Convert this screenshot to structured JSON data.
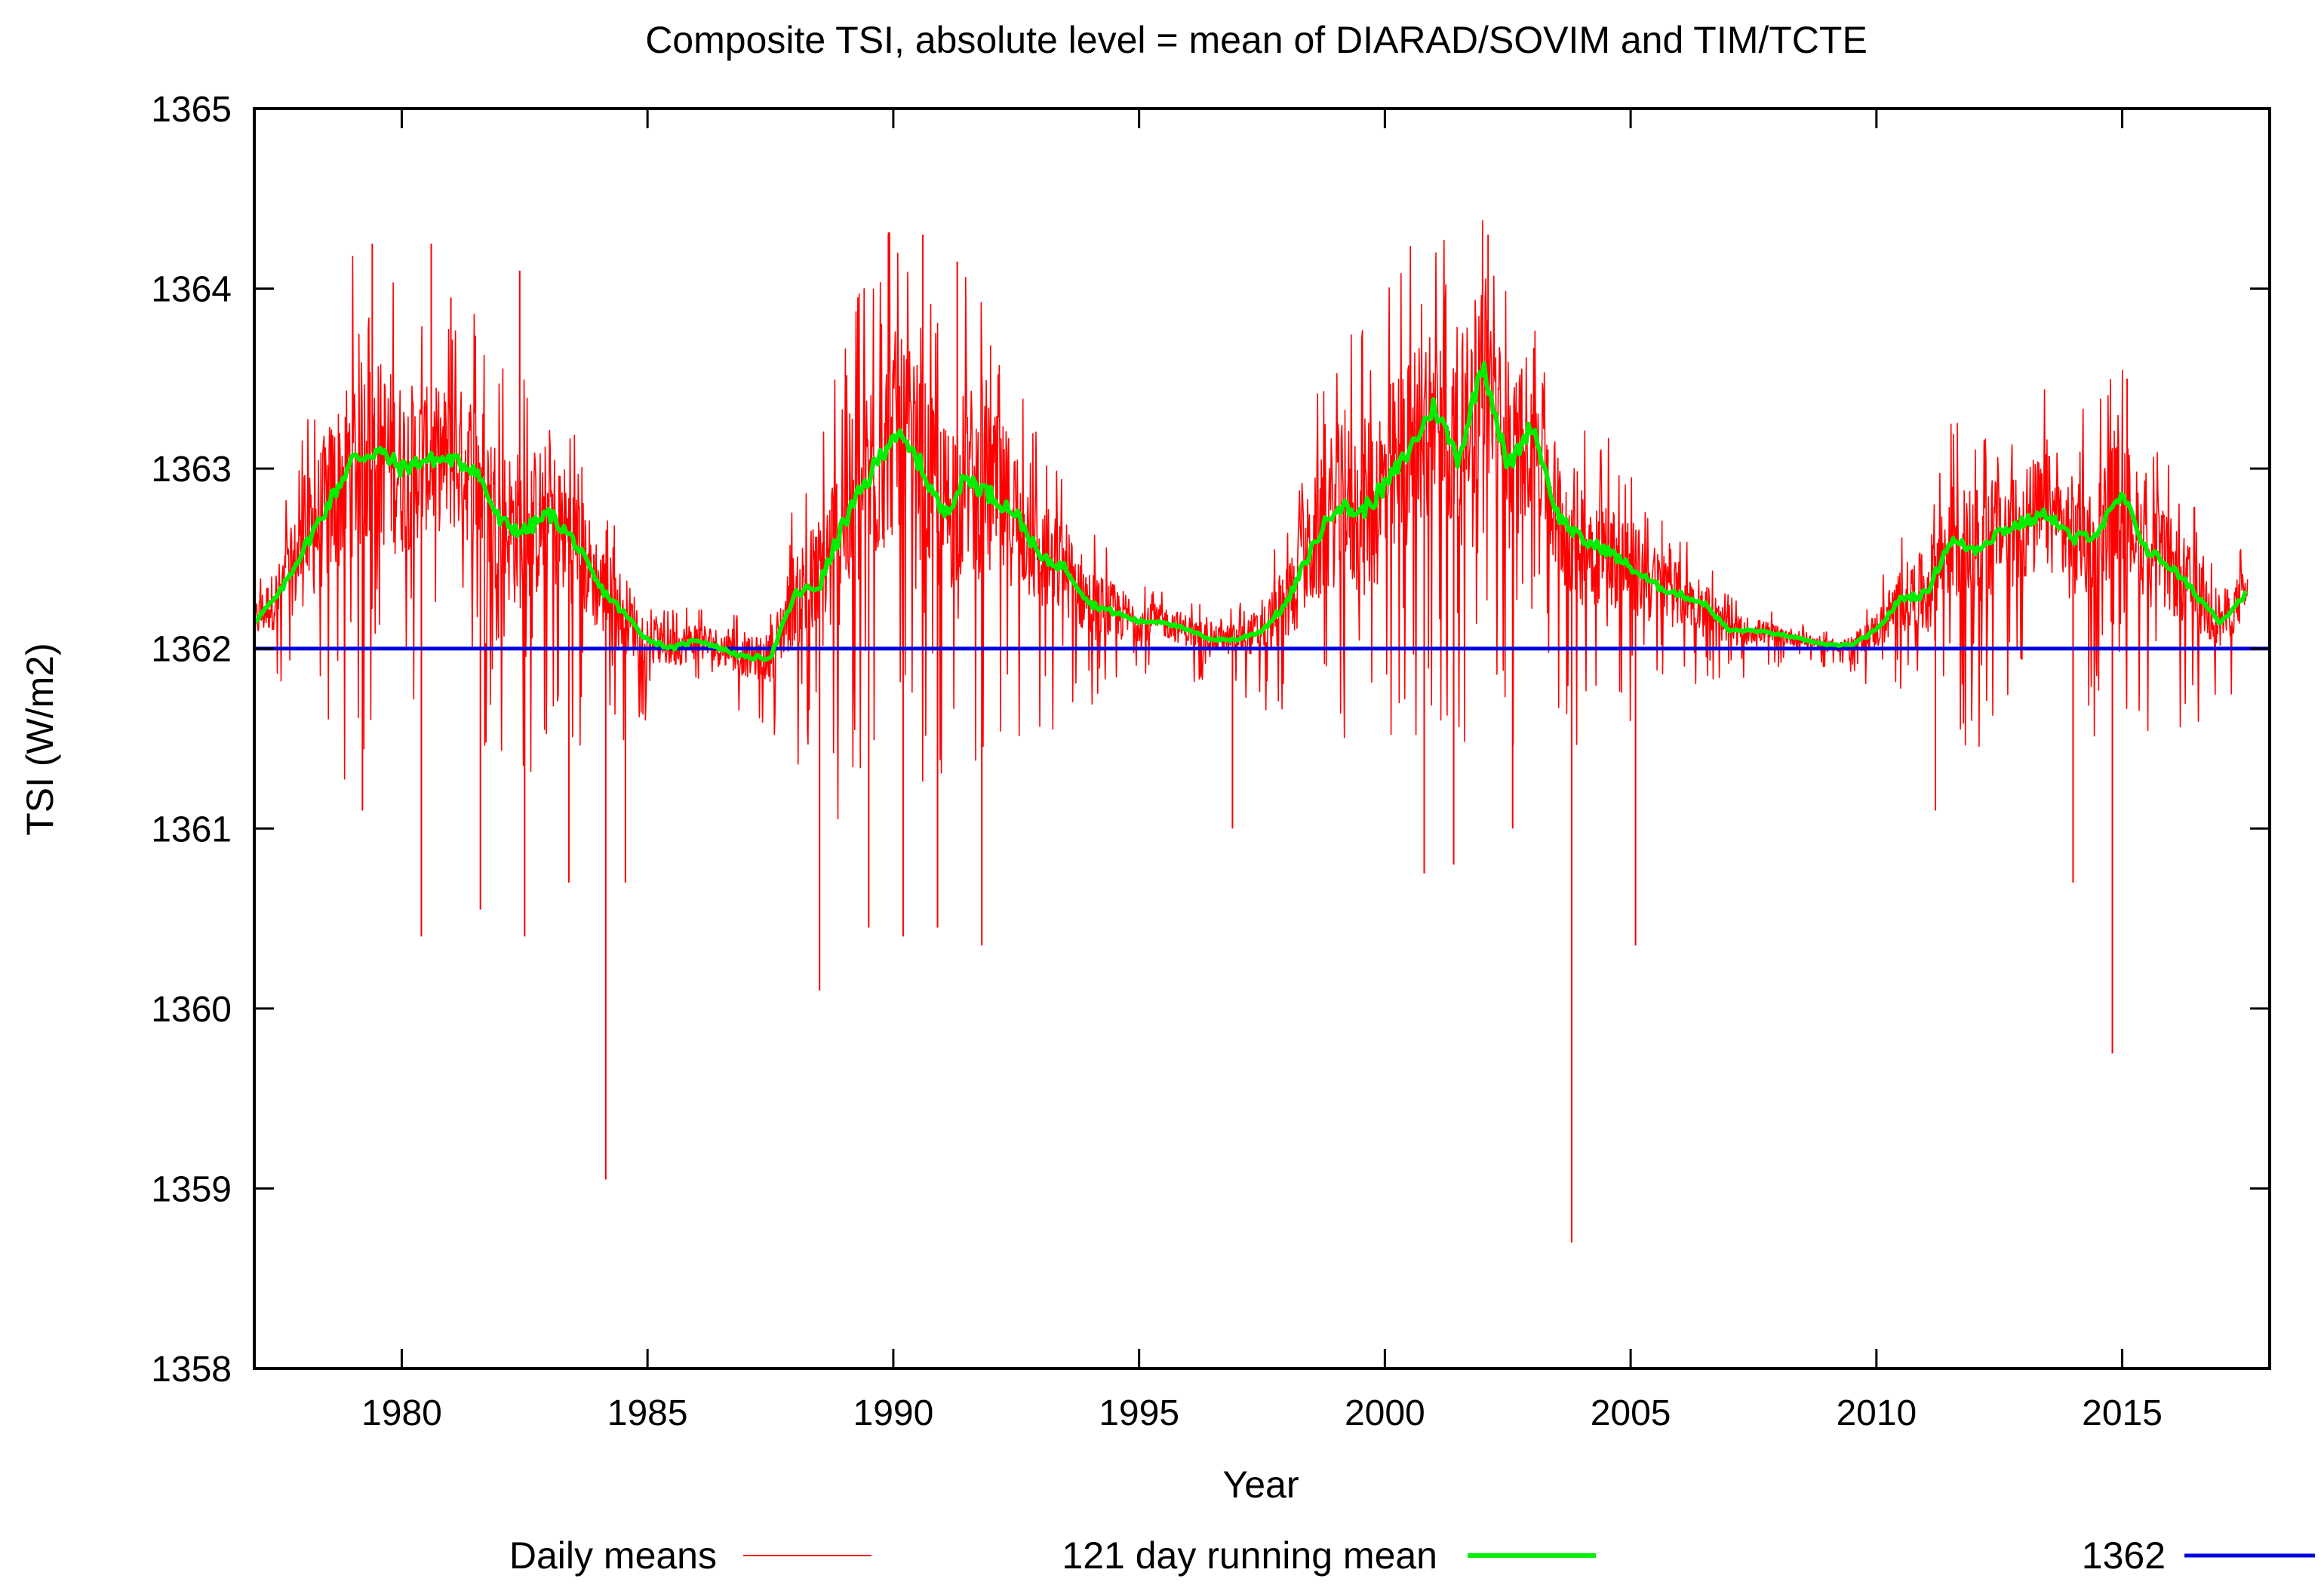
{
  "chart_data": {
    "type": "line",
    "title": "Composite TSI, absolute level = mean of DIARAD/SOVIM and TIM/TCTE",
    "xlabel": "Year",
    "ylabel": "TSI (W/m2)",
    "xlim": [
      1977.0,
      2018.0
    ],
    "ylim": [
      1358,
      1365
    ],
    "x_ticks": [
      1980,
      1985,
      1990,
      1995,
      2000,
      2005,
      2010,
      2015
    ],
    "y_ticks": [
      1358,
      1359,
      1360,
      1361,
      1362,
      1363,
      1364,
      1365
    ],
    "grid": false,
    "legend_position": "bottom",
    "series": [
      {
        "name": "Daily means",
        "color": "#ff0000",
        "style": "thin",
        "baseline": {
          "x": [
            1977.0,
            1977.5,
            1978.0,
            1978.5,
            1979.0,
            1979.5,
            1980.0,
            1980.5,
            1981.0,
            1981.5,
            1982.0,
            1982.5,
            1983.0,
            1983.5,
            1984.0,
            1984.5,
            1985.0,
            1985.5,
            1986.0,
            1986.5,
            1987.0,
            1987.5,
            1988.0,
            1988.5,
            1989.0,
            1989.5,
            1990.0,
            1990.5,
            1991.0,
            1991.5,
            1992.0,
            1992.5,
            1993.0,
            1993.5,
            1994.0,
            1994.5,
            1995.0,
            1995.5,
            1996.0,
            1996.5,
            1997.0,
            1997.5,
            1998.0,
            1998.5,
            1999.0,
            1999.5,
            2000.0,
            2000.5,
            2001.0,
            2001.5,
            2002.0,
            2002.5,
            2003.0,
            2003.5,
            2004.0,
            2004.5,
            2005.0,
            2005.5,
            2006.0,
            2006.5,
            2007.0,
            2007.5,
            2008.0,
            2008.5,
            2009.0,
            2009.5,
            2010.0,
            2010.5,
            2011.0,
            2011.5,
            2012.0,
            2012.5,
            2013.0,
            2013.5,
            2014.0,
            2014.5,
            2015.0,
            2015.5,
            2016.0,
            2016.5,
            2017.0,
            2017.5
          ],
          "y": [
            1362.15,
            1362.3,
            1362.55,
            1362.8,
            1363.05,
            1363.1,
            1363.0,
            1363.05,
            1363.05,
            1363.0,
            1362.7,
            1362.65,
            1362.75,
            1362.6,
            1362.35,
            1362.2,
            1362.05,
            1362.0,
            1362.05,
            1362.0,
            1361.95,
            1361.95,
            1362.3,
            1362.35,
            1362.7,
            1362.95,
            1363.2,
            1363.05,
            1362.75,
            1362.95,
            1362.85,
            1362.75,
            1362.5,
            1362.45,
            1362.25,
            1362.2,
            1362.15,
            1362.15,
            1362.1,
            1362.05,
            1362.05,
            1362.1,
            1362.25,
            1362.55,
            1362.8,
            1362.75,
            1362.9,
            1363.1,
            1363.35,
            1363.05,
            1363.6,
            1363.0,
            1363.25,
            1362.75,
            1362.6,
            1362.55,
            1362.45,
            1362.35,
            1362.3,
            1362.25,
            1362.1,
            1362.1,
            1362.08,
            1362.05,
            1362.02,
            1362.02,
            1362.1,
            1362.28,
            1362.3,
            1362.6,
            1362.55,
            1362.65,
            1362.7,
            1362.75,
            1362.6,
            1362.65,
            1362.85,
            1362.55,
            1362.45,
            1362.3,
            1362.15,
            1362.3
          ],
          "spread": [
            0.12,
            0.2,
            0.35,
            0.5,
            0.6,
            0.6,
            0.55,
            0.45,
            0.45,
            0.5,
            0.5,
            0.5,
            0.45,
            0.4,
            0.3,
            0.25,
            0.15,
            0.12,
            0.12,
            0.12,
            0.12,
            0.15,
            0.3,
            0.45,
            0.6,
            0.65,
            0.65,
            0.6,
            0.55,
            0.6,
            0.55,
            0.45,
            0.35,
            0.3,
            0.22,
            0.18,
            0.12,
            0.1,
            0.1,
            0.08,
            0.1,
            0.15,
            0.25,
            0.4,
            0.5,
            0.55,
            0.6,
            0.6,
            0.6,
            0.6,
            0.65,
            0.55,
            0.5,
            0.45,
            0.4,
            0.35,
            0.3,
            0.25,
            0.2,
            0.15,
            0.1,
            0.08,
            0.06,
            0.05,
            0.04,
            0.05,
            0.12,
            0.2,
            0.28,
            0.35,
            0.38,
            0.38,
            0.38,
            0.38,
            0.4,
            0.4,
            0.4,
            0.35,
            0.3,
            0.25,
            0.18,
            0.15
          ]
        },
        "notable_dips": [
          {
            "x": 1979.2,
            "y": 1361.1
          },
          {
            "x": 1980.4,
            "y": 1360.4
          },
          {
            "x": 1981.6,
            "y": 1360.55
          },
          {
            "x": 1982.5,
            "y": 1360.4
          },
          {
            "x": 1983.4,
            "y": 1360.7
          },
          {
            "x": 1984.15,
            "y": 1359.05
          },
          {
            "x": 1984.55,
            "y": 1360.7
          },
          {
            "x": 1988.5,
            "y": 1360.1
          },
          {
            "x": 1989.5,
            "y": 1360.45
          },
          {
            "x": 1990.2,
            "y": 1360.4
          },
          {
            "x": 1990.9,
            "y": 1360.45
          },
          {
            "x": 1991.8,
            "y": 1360.35
          },
          {
            "x": 1996.9,
            "y": 1361.0
          },
          {
            "x": 2000.8,
            "y": 1360.75
          },
          {
            "x": 2001.4,
            "y": 1360.8
          },
          {
            "x": 2002.6,
            "y": 1361.0
          },
          {
            "x": 2003.8,
            "y": 1358.7
          },
          {
            "x": 2005.1,
            "y": 1360.35
          },
          {
            "x": 2011.2,
            "y": 1361.1
          },
          {
            "x": 2014.0,
            "y": 1360.7
          },
          {
            "x": 2014.8,
            "y": 1359.75
          }
        ],
        "notable_peaks": [
          {
            "x": 1979.4,
            "y": 1364.25
          },
          {
            "x": 1980.6,
            "y": 1364.25
          },
          {
            "x": 1981.0,
            "y": 1363.95
          },
          {
            "x": 1982.4,
            "y": 1364.1
          },
          {
            "x": 1989.9,
            "y": 1364.3
          },
          {
            "x": 1990.6,
            "y": 1364.3
          },
          {
            "x": 1991.3,
            "y": 1364.15
          },
          {
            "x": 2002.1,
            "y": 1364.3
          },
          {
            "x": 2015.1,
            "y": 1363.5
          }
        ]
      },
      {
        "name": "121 day running mean",
        "color": "#00ee00",
        "style": "thick",
        "x": [
          1977.0,
          1977.5,
          1978.0,
          1978.5,
          1979.0,
          1979.5,
          1980.0,
          1980.5,
          1981.0,
          1981.5,
          1982.0,
          1982.5,
          1983.0,
          1983.5,
          1984.0,
          1984.5,
          1985.0,
          1985.5,
          1986.0,
          1986.5,
          1987.0,
          1987.5,
          1988.0,
          1988.5,
          1989.0,
          1989.5,
          1990.0,
          1990.5,
          1991.0,
          1991.5,
          1992.0,
          1992.5,
          1993.0,
          1993.5,
          1994.0,
          1994.5,
          1995.0,
          1995.5,
          1996.0,
          1996.5,
          1997.0,
          1997.5,
          1998.0,
          1998.5,
          1999.0,
          1999.5,
          2000.0,
          2000.5,
          2001.0,
          2001.5,
          2002.0,
          2002.5,
          2003.0,
          2003.5,
          2004.0,
          2004.5,
          2005.0,
          2005.5,
          2006.0,
          2006.5,
          2007.0,
          2007.5,
          2008.0,
          2008.5,
          2009.0,
          2009.5,
          2010.0,
          2010.5,
          2011.0,
          2011.5,
          2012.0,
          2012.5,
          2013.0,
          2013.5,
          2014.0,
          2014.5,
          2015.0,
          2015.5,
          2016.0,
          2016.5,
          2017.0,
          2017.5
        ],
        "y": [
          1362.15,
          1362.3,
          1362.55,
          1362.8,
          1363.05,
          1363.1,
          1363.0,
          1363.05,
          1363.05,
          1363.0,
          1362.7,
          1362.65,
          1362.75,
          1362.6,
          1362.35,
          1362.2,
          1362.05,
          1362.0,
          1362.05,
          1362.0,
          1361.95,
          1361.95,
          1362.3,
          1362.35,
          1362.7,
          1362.95,
          1363.2,
          1363.05,
          1362.75,
          1362.95,
          1362.85,
          1362.75,
          1362.5,
          1362.45,
          1362.25,
          1362.2,
          1362.15,
          1362.15,
          1362.1,
          1362.05,
          1362.05,
          1362.1,
          1362.25,
          1362.55,
          1362.8,
          1362.75,
          1362.9,
          1363.1,
          1363.35,
          1363.05,
          1363.6,
          1363.0,
          1363.25,
          1362.75,
          1362.6,
          1362.55,
          1362.45,
          1362.35,
          1362.3,
          1362.25,
          1362.1,
          1362.1,
          1362.08,
          1362.05,
          1362.02,
          1362.02,
          1362.1,
          1362.28,
          1362.3,
          1362.6,
          1362.55,
          1362.65,
          1362.7,
          1362.75,
          1362.6,
          1362.65,
          1362.85,
          1362.55,
          1362.45,
          1362.3,
          1362.15,
          1362.3
        ]
      },
      {
        "name": "1362",
        "color": "#0000dd",
        "style": "medium",
        "x": [
          1977.0,
          2018.0
        ],
        "y": [
          1362,
          1362
        ]
      }
    ]
  }
}
